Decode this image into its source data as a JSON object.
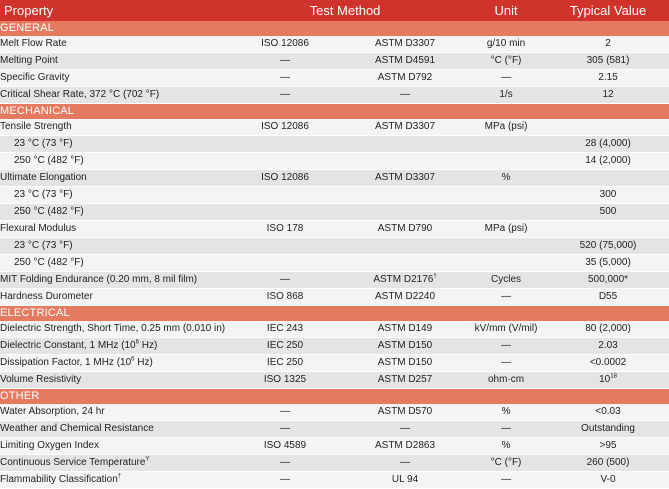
{
  "header": {
    "property": "Property",
    "test_method": "Test Method",
    "unit": "Unit",
    "typical_value": "Typical Value"
  },
  "colors": {
    "header_bg": "#d0332b",
    "section_bg": "#e47a5f",
    "row_light": "#f4f4f4",
    "row_dark": "#e4e4e4"
  },
  "sections": [
    {
      "title": "GENERAL",
      "rows": [
        {
          "property": "Melt Flow Rate",
          "m1": "ISO 12086",
          "m2": "ASTM D3307",
          "unit": "g/10 min",
          "value": "2"
        },
        {
          "property": "Melting Point",
          "m1": "—",
          "m2": "ASTM D4591",
          "unit": "°C (°F)",
          "value": "305 (581)"
        },
        {
          "property": "Specific Gravity",
          "m1": "—",
          "m2": "ASTM D792",
          "unit": "—",
          "value": "2.15"
        },
        {
          "property": "Critical Shear Rate, 372 °C (702 °F)",
          "m1": "—",
          "m2": "—",
          "unit": "1/s",
          "value": "12"
        }
      ]
    },
    {
      "title": "MECHANICAL",
      "rows": [
        {
          "property": "Tensile Strength",
          "m1": "ISO 12086",
          "m2": "ASTM D3307",
          "unit": "MPa (psi)",
          "value": ""
        },
        {
          "property": "23 °C (73 °F)",
          "sub": true,
          "m1": "",
          "m2": "",
          "unit": "",
          "value": "28 (4,000)"
        },
        {
          "property": "250 °C (482 °F)",
          "sub": true,
          "m1": "",
          "m2": "",
          "unit": "",
          "value": "14 (2,000)"
        },
        {
          "property": "Ultimate Elongation",
          "m1": "ISO 12086",
          "m2": "ASTM D3307",
          "unit": "%",
          "value": ""
        },
        {
          "property": "23 °C (73 °F)",
          "sub": true,
          "m1": "",
          "m2": "",
          "unit": "",
          "value": "300"
        },
        {
          "property": "250 °C (482 °F)",
          "sub": true,
          "m1": "",
          "m2": "",
          "unit": "",
          "value": "500"
        },
        {
          "property": "Flexural Modulus",
          "m1": "ISO 178",
          "m2": "ASTM D790",
          "unit": "MPa (psi)",
          "value": ""
        },
        {
          "property": "23 °C (73 °F)",
          "sub": true,
          "m1": "",
          "m2": "",
          "unit": "",
          "value": "520 (75,000)"
        },
        {
          "property": "250 °C (482 °F)",
          "sub": true,
          "m1": "",
          "m2": "",
          "unit": "",
          "value": "35 (5,000)"
        },
        {
          "property": "MIT Folding Endurance (0.20 mm, 8 mil film)",
          "m1": "—",
          "m2": "ASTM D2176",
          "m2_sup": "†",
          "unit": "Cycles",
          "value": "500,000*"
        },
        {
          "property": "Hardness Durometer",
          "m1": "ISO 868",
          "m2": "ASTM D2240",
          "unit": "—",
          "value": "D55"
        }
      ]
    },
    {
      "title": "ELECTRICAL",
      "rows": [
        {
          "property": "Dielectric Strength, Short Time, 0.25 mm (0.010 in)",
          "m1": "IEC 243",
          "m2": "ASTM D149",
          "unit": "kV/mm (V/mil)",
          "value": "80 (2,000)"
        },
        {
          "property": "Dielectric Constant, 1 MHz (10",
          "property_sup": "6",
          "property_tail": " Hz)",
          "m1": "IEC 250",
          "m2": "ASTM D150",
          "unit": "—",
          "value": "2.03"
        },
        {
          "property": "Dissipation Factor, 1 MHz (10",
          "property_sup": "6",
          "property_tail": " Hz)",
          "m1": "IEC 250",
          "m2": "ASTM D150",
          "unit": "—",
          "value": "<0.0002"
        },
        {
          "property": "Volume Resistivity",
          "m1": "ISO 1325",
          "m2": "ASTM D257",
          "unit": "ohm·cm",
          "value": "10",
          "value_sup": "18"
        }
      ]
    },
    {
      "title": "OTHER",
      "rows": [
        {
          "property": "Water Absorption, 24 hr",
          "m1": "—",
          "m2": "ASTM D570",
          "unit": "%",
          "value": "<0.03"
        },
        {
          "property": "Weather and Chemical Resistance",
          "m1": "—",
          "m2": "—",
          "unit": "—",
          "value": "Outstanding"
        },
        {
          "property": "Limiting Oxygen Index",
          "m1": "ISO 4589",
          "m2": "ASTM D2863",
          "unit": "%",
          "value": ">95"
        },
        {
          "property": "Continuous Service Temperature",
          "property_sup": "Y",
          "m1": "—",
          "m2": "—",
          "unit": "°C (°F)",
          "value": "260 (500)"
        },
        {
          "property": "Flammability Classification",
          "property_sup": "†",
          "m1": "—",
          "m2": "UL 94",
          "unit": "—",
          "value": "V-0"
        }
      ]
    }
  ]
}
